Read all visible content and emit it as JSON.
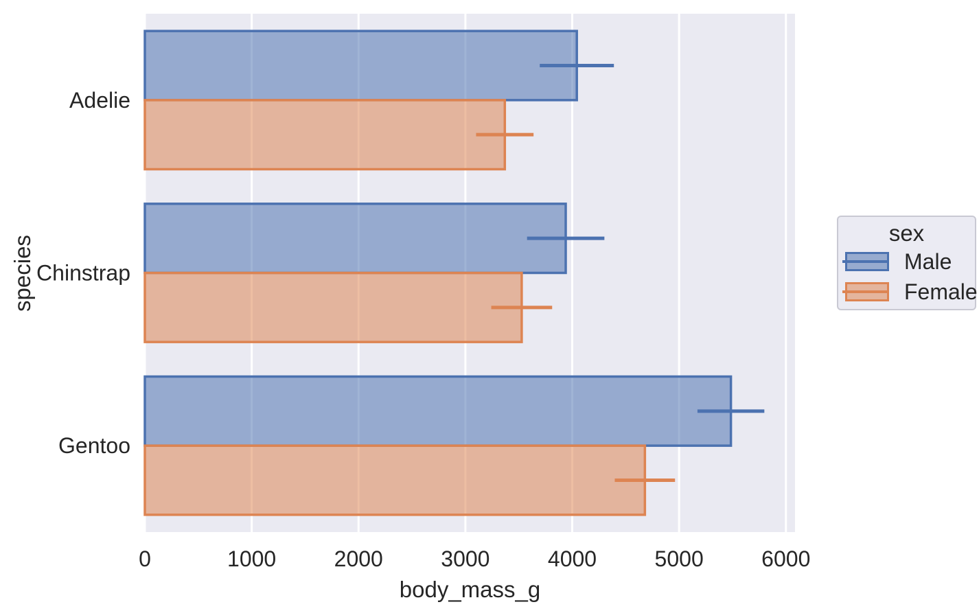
{
  "figure": {
    "background": "#ffffff",
    "plot_background": "#eaeaf2",
    "grid_color": "#ffffff",
    "text_color": "#262626",
    "legend_background": "#ebebf3",
    "legend_border": "#c9c9d3"
  },
  "chart_data": {
    "type": "bar",
    "orientation": "horizontal",
    "title": "",
    "xlabel": "body_mass_g",
    "ylabel": "species",
    "categories": [
      "Adelie",
      "Chinstrap",
      "Gentoo"
    ],
    "series": [
      {
        "name": "Male",
        "values": [
          4043,
          3939,
          5485
        ],
        "errorbar_low": [
          3696,
          3577,
          5172
        ],
        "errorbar_high": [
          4390,
          4301,
          5798
        ],
        "fill_color": "#4c72b0",
        "fill_opacity": 0.53,
        "edge_color": "#4c72b0"
      },
      {
        "name": "Female",
        "values": [
          3369,
          3527,
          4680
        ],
        "errorbar_low": [
          3100,
          3242,
          4398
        ],
        "errorbar_high": [
          3638,
          3812,
          4962
        ],
        "fill_color": "#dd8452",
        "fill_opacity": 0.53,
        "edge_color": "#dd8452"
      }
    ],
    "x_ticks": [
      "0",
      "1000",
      "2000",
      "3000",
      "4000",
      "5000",
      "6000"
    ],
    "x_tick_values": [
      0,
      1000,
      2000,
      3000,
      4000,
      5000,
      6000
    ],
    "xlim": [
      0,
      6085
    ],
    "grid": true,
    "errorbar": "sd",
    "legend": {
      "title": "sex",
      "labels": [
        "Male",
        "Female"
      ],
      "position": "center right"
    }
  }
}
